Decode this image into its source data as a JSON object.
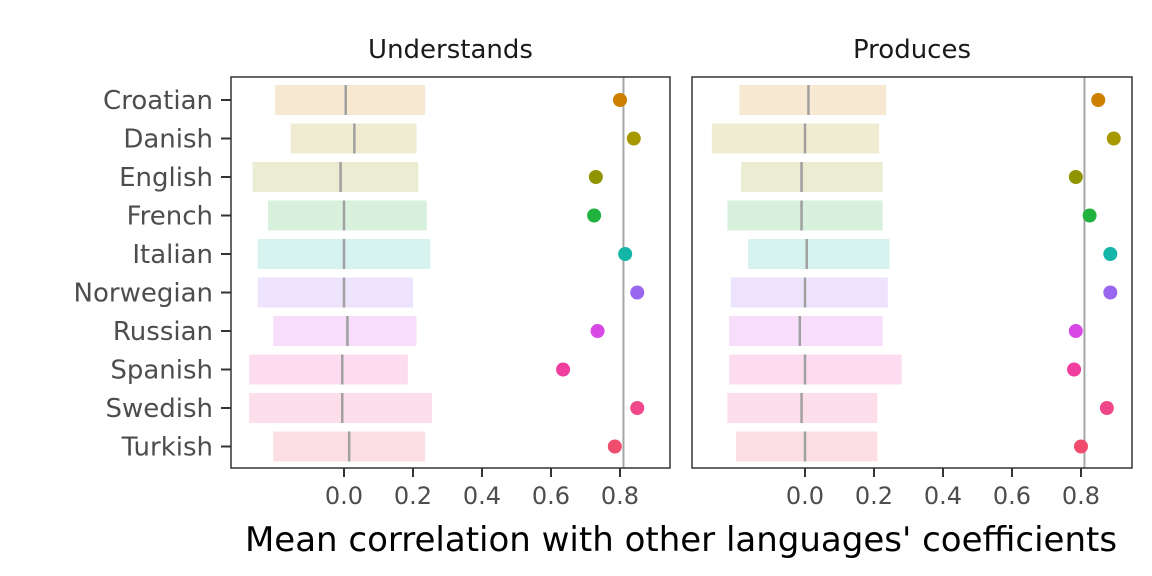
{
  "chart_data": {
    "type": "bar",
    "xlabel": "Mean correlation with other languages' coefficients",
    "ylabel": "",
    "xlim": [
      -0.35,
      0.95
    ],
    "x_ticks": [
      0.0,
      0.2,
      0.4,
      0.6,
      0.8
    ],
    "x_tick_labels": [
      "0.0",
      "0.2",
      "0.4",
      "0.6",
      "0.8"
    ],
    "languages": [
      "Croatian",
      "Danish",
      "English",
      "French",
      "Italian",
      "Norwegian",
      "Russian",
      "Spanish",
      "Swedish",
      "Turkish"
    ],
    "colors": [
      "#CD7F00",
      "#A89800",
      "#8F9500",
      "#1FB23E",
      "#15B5A8",
      "#9966F0",
      "#D848E6",
      "#F03E9E",
      "#F0478A",
      "#F04C6E"
    ],
    "panels": [
      {
        "title": "Understands",
        "reference_line": 0.81,
        "bars": [
          {
            "language": "Croatian",
            "low": -0.2,
            "high": 0.235,
            "median": 0.005
          },
          {
            "language": "Danish",
            "low": -0.155,
            "high": 0.21,
            "median": 0.03
          },
          {
            "language": "English",
            "low": -0.265,
            "high": 0.215,
            "median": -0.01
          },
          {
            "language": "French",
            "low": -0.22,
            "high": 0.24,
            "median": 0.0
          },
          {
            "language": "Italian",
            "low": -0.25,
            "high": 0.25,
            "median": 0.0
          },
          {
            "language": "Norwegian",
            "low": -0.25,
            "high": 0.2,
            "median": 0.0
          },
          {
            "language": "Russian",
            "low": -0.205,
            "high": 0.21,
            "median": 0.01
          },
          {
            "language": "Spanish",
            "low": -0.275,
            "high": 0.185,
            "median": -0.005
          },
          {
            "language": "Swedish",
            "low": -0.275,
            "high": 0.255,
            "median": -0.005
          },
          {
            "language": "Turkish",
            "low": -0.205,
            "high": 0.235,
            "median": 0.015
          }
        ],
        "points": [
          {
            "language": "Croatian",
            "value": 0.8
          },
          {
            "language": "Danish",
            "value": 0.84
          },
          {
            "language": "English",
            "value": 0.73
          },
          {
            "language": "French",
            "value": 0.725
          },
          {
            "language": "Italian",
            "value": 0.815
          },
          {
            "language": "Norwegian",
            "value": 0.85
          },
          {
            "language": "Russian",
            "value": 0.735
          },
          {
            "language": "Spanish",
            "value": 0.635
          },
          {
            "language": "Swedish",
            "value": 0.85
          },
          {
            "language": "Turkish",
            "value": 0.785
          }
        ]
      },
      {
        "title": "Produces",
        "reference_line": 0.81,
        "bars": [
          {
            "language": "Croatian",
            "low": -0.19,
            "high": 0.235,
            "median": 0.01
          },
          {
            "language": "Danish",
            "low": -0.27,
            "high": 0.215,
            "median": 0.0
          },
          {
            "language": "English",
            "low": -0.185,
            "high": 0.225,
            "median": -0.01
          },
          {
            "language": "French",
            "low": -0.225,
            "high": 0.225,
            "median": -0.01
          },
          {
            "language": "Italian",
            "low": -0.165,
            "high": 0.245,
            "median": 0.005
          },
          {
            "language": "Norwegian",
            "low": -0.215,
            "high": 0.24,
            "median": 0.0
          },
          {
            "language": "Russian",
            "low": -0.22,
            "high": 0.225,
            "median": -0.015
          },
          {
            "language": "Spanish",
            "low": -0.22,
            "high": 0.28,
            "median": 0.0
          },
          {
            "language": "Swedish",
            "low": -0.225,
            "high": 0.21,
            "median": -0.01
          },
          {
            "language": "Turkish",
            "low": -0.2,
            "high": 0.21,
            "median": 0.0
          }
        ],
        "points": [
          {
            "language": "Croatian",
            "value": 0.85
          },
          {
            "language": "Danish",
            "value": 0.895
          },
          {
            "language": "English",
            "value": 0.785
          },
          {
            "language": "French",
            "value": 0.825
          },
          {
            "language": "Italian",
            "value": 0.885
          },
          {
            "language": "Norwegian",
            "value": 0.885
          },
          {
            "language": "Russian",
            "value": 0.785
          },
          {
            "language": "Spanish",
            "value": 0.78
          },
          {
            "language": "Swedish",
            "value": 0.875
          },
          {
            "language": "Turkish",
            "value": 0.8
          }
        ]
      }
    ]
  }
}
